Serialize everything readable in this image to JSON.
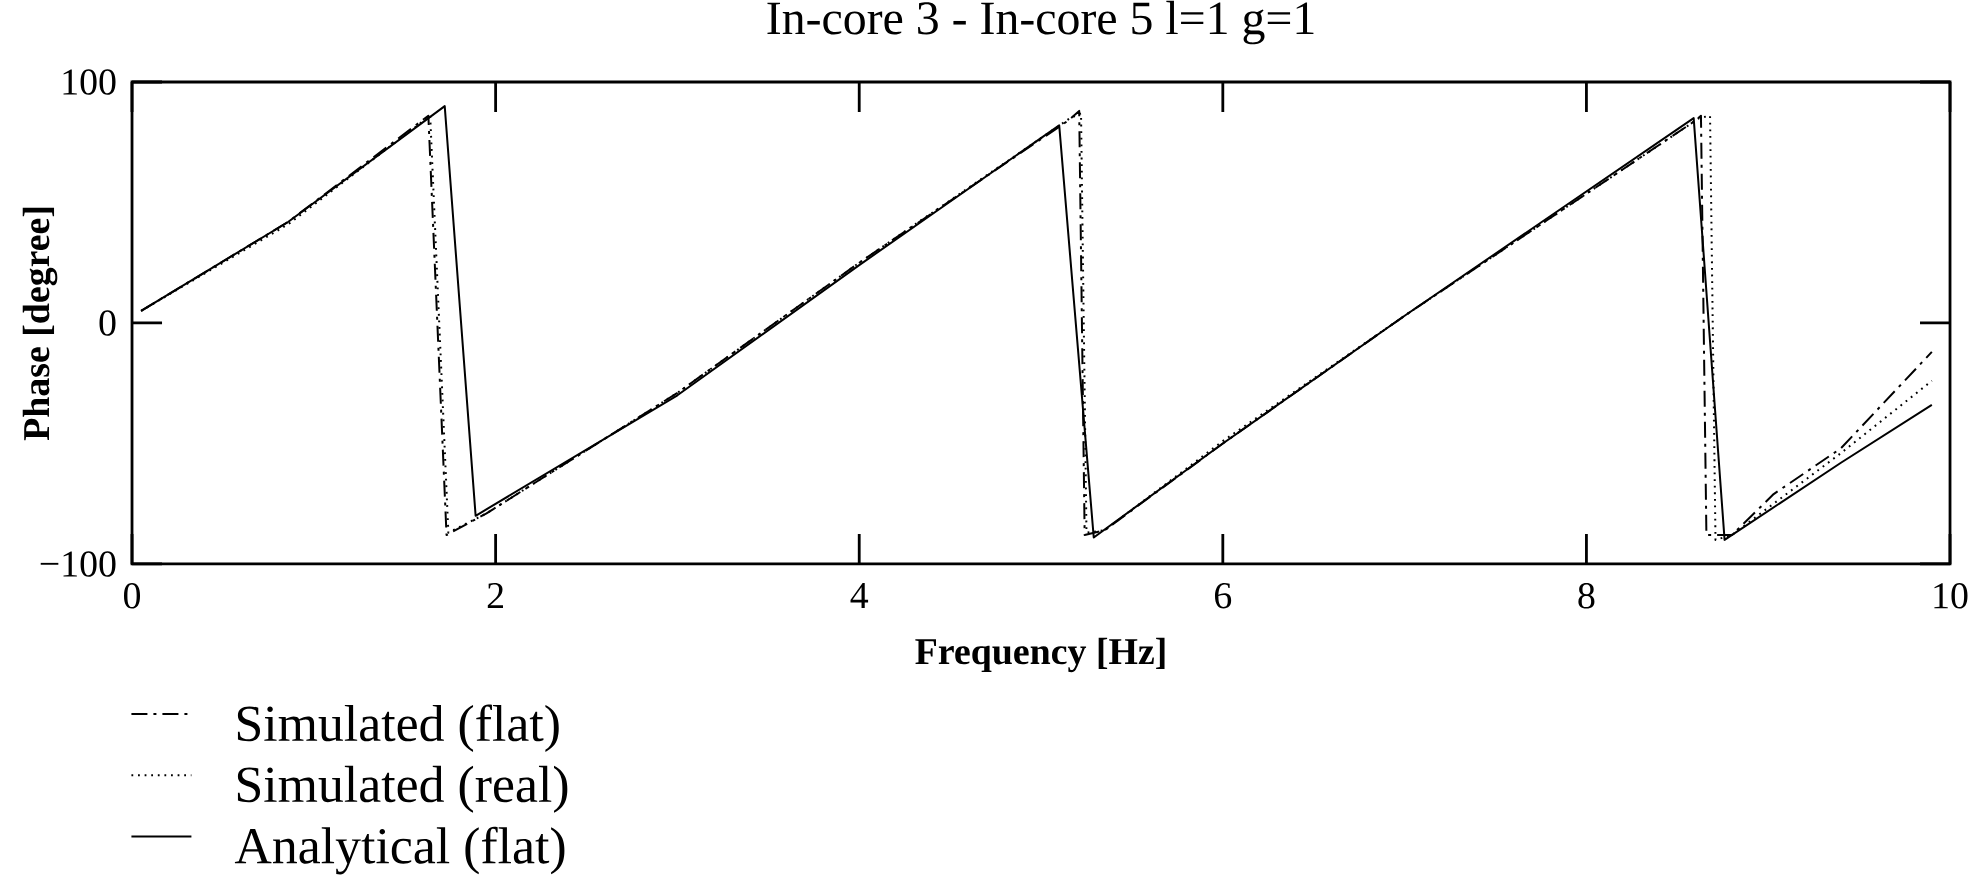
{
  "chart_data": {
    "type": "line",
    "title": "In-core 3 - In-core 5  l=1 g=1",
    "xlabel": "Frequency [Hz]",
    "ylabel": "Phase [degree]",
    "xlim": [
      0,
      10
    ],
    "ylim": [
      -100,
      100
    ],
    "xticks": [
      0,
      2,
      4,
      6,
      8,
      10
    ],
    "yticks": [
      {
        "value": -100,
        "label": "−100"
      },
      0,
      100
    ],
    "legend": "bottom left",
    "series": [
      {
        "name": "Simulated (flat)",
        "color": "#000000",
        "line_style": "dashdot",
        "x": [
          0.05,
          0.86,
          1.63,
          1.73,
          1.95,
          3.0,
          4.0,
          5.15,
          5.21,
          5.24,
          5.35,
          6.0,
          7.0,
          8.6,
          8.63,
          8.66,
          8.8,
          9.03,
          9.4,
          9.9
        ],
        "values": [
          5,
          42,
          86,
          -88,
          -79,
          -29,
          25,
          84,
          88,
          -88,
          -86,
          -50,
          3,
          84,
          86,
          -88,
          -88,
          -71,
          -52,
          -12
        ]
      },
      {
        "name": "Simulated (real)",
        "color": "#000000",
        "line_style": "dotted",
        "x": [
          0.05,
          0.86,
          1.64,
          1.74,
          1.95,
          3.0,
          4.0,
          5.16,
          5.22,
          5.25,
          5.35,
          6.0,
          7.0,
          8.62,
          8.68,
          8.71,
          8.8,
          9.4,
          9.9
        ],
        "values": [
          5,
          41,
          86,
          -87,
          -79,
          -29,
          25,
          85,
          87,
          -87,
          -86,
          -49,
          3,
          85,
          86,
          -90,
          -88,
          -54,
          -24
        ]
      },
      {
        "name": "Analytical (flat)",
        "color": "#000000",
        "line_style": "solid",
        "x": [
          0.05,
          0.86,
          1.72,
          1.89,
          3.0,
          4.0,
          5.1,
          5.29,
          6.0,
          7.0,
          8.59,
          8.76,
          9.4,
          9.9
        ],
        "values": [
          5,
          42,
          90,
          -80,
          -30,
          24,
          82,
          -89,
          -50,
          3,
          85,
          -90,
          -58,
          -34
        ]
      }
    ]
  }
}
